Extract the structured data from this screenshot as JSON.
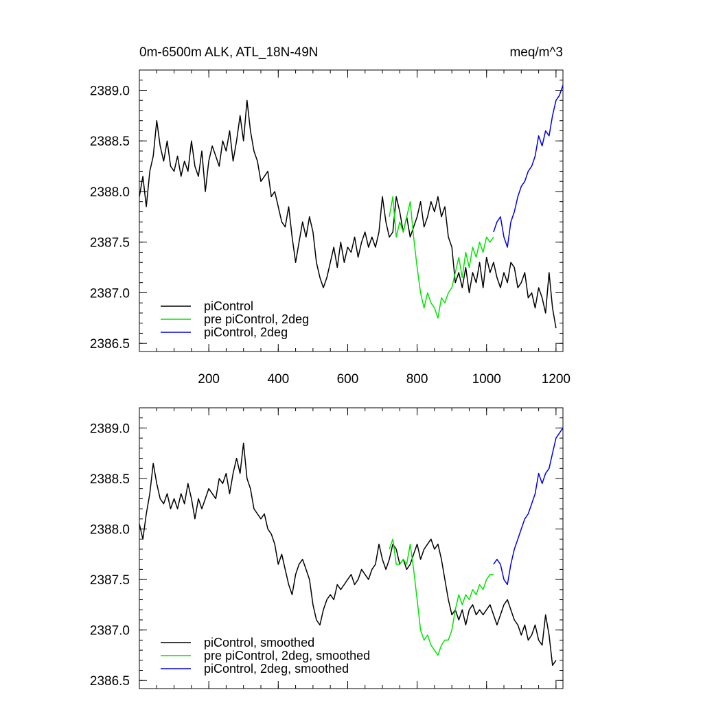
{
  "chart_data": [
    {
      "type": "line",
      "title": "",
      "header_left": "0m-6500m ALK, ATL_18N-49N",
      "header_right": "meq/m^3",
      "xlabel": "",
      "ylabel": "",
      "xlim": [
        0,
        1220
      ],
      "ylim": [
        2386.42,
        2389.2
      ],
      "x_ticks": [
        200,
        400,
        600,
        800,
        1000,
        1200
      ],
      "x_tick_labels": [
        "200",
        "400",
        "600",
        "800",
        "1000",
        "1200"
      ],
      "y_ticks": [
        2386.5,
        2387.0,
        2387.5,
        2388.0,
        2388.5,
        2389.0
      ],
      "y_tick_labels": [
        "2386.5",
        "2387.0",
        "2387.5",
        "2388.0",
        "2388.5",
        "2389.0"
      ],
      "grid": false,
      "legend_position": "bottom-left",
      "series": [
        {
          "name": "piControl",
          "color": "#000000",
          "x": [
            0,
            10,
            20,
            30,
            40,
            50,
            60,
            70,
            80,
            90,
            100,
            110,
            120,
            130,
            140,
            150,
            160,
            170,
            180,
            190,
            200,
            210,
            220,
            230,
            240,
            250,
            260,
            270,
            280,
            290,
            300,
            310,
            320,
            330,
            340,
            350,
            360,
            370,
            380,
            390,
            400,
            410,
            420,
            430,
            440,
            450,
            460,
            470,
            480,
            490,
            500,
            510,
            520,
            530,
            540,
            550,
            560,
            570,
            580,
            590,
            600,
            610,
            620,
            630,
            640,
            650,
            660,
            670,
            680,
            690,
            700,
            710,
            720,
            730,
            740,
            750,
            760,
            770,
            780,
            790,
            800,
            810,
            820,
            830,
            840,
            850,
            860,
            870,
            880,
            890,
            900,
            910,
            920,
            930,
            940,
            950,
            960,
            970,
            980,
            990,
            1000,
            1010,
            1020,
            1030,
            1040,
            1050,
            1060,
            1070,
            1080,
            1090,
            1100,
            1110,
            1120,
            1130,
            1140,
            1150,
            1160,
            1170,
            1180,
            1190,
            1200
          ],
          "values": [
            2387.95,
            2388.15,
            2387.85,
            2388.2,
            2388.35,
            2388.7,
            2388.45,
            2388.3,
            2388.5,
            2388.25,
            2388.2,
            2388.35,
            2388.15,
            2388.3,
            2388.2,
            2388.5,
            2388.25,
            2388.15,
            2388.4,
            2388.0,
            2388.3,
            2388.45,
            2388.35,
            2388.25,
            2388.5,
            2388.4,
            2388.6,
            2388.3,
            2388.5,
            2388.75,
            2388.5,
            2388.9,
            2388.6,
            2388.4,
            2388.3,
            2388.1,
            2388.15,
            2388.2,
            2387.95,
            2388.0,
            2387.85,
            2387.7,
            2387.65,
            2387.85,
            2387.55,
            2387.3,
            2387.5,
            2387.7,
            2387.55,
            2387.75,
            2387.6,
            2387.3,
            2387.15,
            2387.05,
            2387.15,
            2387.3,
            2387.45,
            2387.25,
            2387.5,
            2387.3,
            2387.45,
            2387.4,
            2387.55,
            2387.35,
            2387.5,
            2387.6,
            2387.45,
            2387.55,
            2387.45,
            2387.6,
            2387.95,
            2387.7,
            2387.55,
            2387.6,
            2387.95,
            2387.8,
            2387.6,
            2387.75,
            2387.55,
            2387.65,
            2387.75,
            2387.9,
            2387.65,
            2387.75,
            2387.9,
            2387.8,
            2387.95,
            2387.75,
            2387.85,
            2387.55,
            2387.45,
            2387.1,
            2387.2,
            2387.05,
            2387.25,
            2387.0,
            2387.2,
            2387.1,
            2387.3,
            2387.05,
            2387.35,
            2387.2,
            2387.3,
            2387.15,
            2387.05,
            2387.2,
            2387.1,
            2387.3,
            2387.25,
            2387.05,
            2387.1,
            2387.2,
            2386.95,
            2387.0,
            2386.85,
            2387.05,
            2386.95,
            2386.8,
            2387.2,
            2386.85,
            2386.65
          ]
        },
        {
          "name": "pre piControl, 2deg",
          "color": "#00e400",
          "x": [
            720,
            730,
            740,
            750,
            760,
            770,
            780,
            790,
            800,
            810,
            820,
            830,
            840,
            850,
            860,
            870,
            880,
            890,
            900,
            910,
            920,
            930,
            940,
            950,
            960,
            970,
            980,
            990,
            1000,
            1010,
            1020
          ],
          "values": [
            2387.75,
            2387.95,
            2387.55,
            2387.7,
            2387.6,
            2387.75,
            2387.9,
            2387.55,
            2387.25,
            2387.0,
            2386.85,
            2387.0,
            2386.9,
            2386.85,
            2386.75,
            2386.95,
            2386.9,
            2387.0,
            2387.05,
            2387.2,
            2387.35,
            2387.15,
            2387.4,
            2387.25,
            2387.45,
            2387.35,
            2387.5,
            2387.4,
            2387.55,
            2387.5,
            2387.55
          ]
        },
        {
          "name": "piControl, 2deg",
          "color": "#0000e4",
          "x": [
            1020,
            1030,
            1040,
            1050,
            1060,
            1070,
            1080,
            1090,
            1100,
            1110,
            1120,
            1130,
            1140,
            1150,
            1160,
            1170,
            1180,
            1190,
            1200,
            1210,
            1220
          ],
          "values": [
            2387.6,
            2387.7,
            2387.75,
            2387.55,
            2387.45,
            2387.7,
            2387.8,
            2387.95,
            2388.05,
            2388.1,
            2388.2,
            2388.25,
            2388.35,
            2388.55,
            2388.45,
            2388.6,
            2388.55,
            2388.75,
            2388.9,
            2388.95,
            2389.05
          ]
        }
      ]
    },
    {
      "type": "line",
      "title": "",
      "xlabel": "",
      "ylabel": "",
      "xlim": [
        0,
        1220
      ],
      "ylim": [
        2386.42,
        2389.2
      ],
      "x_ticks": [
        200,
        400,
        600,
        800,
        1000,
        1200
      ],
      "y_ticks": [
        2386.5,
        2387.0,
        2387.5,
        2388.0,
        2388.5,
        2389.0
      ],
      "y_tick_labels": [
        "2386.5",
        "2387.0",
        "2387.5",
        "2388.0",
        "2388.5",
        "2389.0"
      ],
      "grid": false,
      "legend_position": "bottom-left",
      "series": [
        {
          "name": "piControl, smoothed",
          "color": "#000000",
          "x": [
            0,
            10,
            20,
            30,
            40,
            50,
            60,
            70,
            80,
            90,
            100,
            110,
            120,
            130,
            140,
            150,
            160,
            170,
            180,
            190,
            200,
            210,
            220,
            230,
            240,
            250,
            260,
            270,
            280,
            290,
            300,
            310,
            320,
            330,
            340,
            350,
            360,
            370,
            380,
            390,
            400,
            410,
            420,
            430,
            440,
            450,
            460,
            470,
            480,
            490,
            500,
            510,
            520,
            530,
            540,
            550,
            560,
            570,
            580,
            590,
            600,
            610,
            620,
            630,
            640,
            650,
            660,
            670,
            680,
            690,
            700,
            710,
            720,
            730,
            740,
            750,
            760,
            770,
            780,
            790,
            800,
            810,
            820,
            830,
            840,
            850,
            860,
            870,
            880,
            890,
            900,
            910,
            920,
            930,
            940,
            950,
            960,
            970,
            980,
            990,
            1000,
            1010,
            1020,
            1030,
            1040,
            1050,
            1060,
            1070,
            1080,
            1090,
            1100,
            1110,
            1120,
            1130,
            1140,
            1150,
            1160,
            1170,
            1180,
            1190,
            1200
          ],
          "values": [
            2388.05,
            2387.9,
            2388.15,
            2388.35,
            2388.65,
            2388.45,
            2388.3,
            2388.25,
            2388.35,
            2388.2,
            2388.3,
            2388.2,
            2388.35,
            2388.25,
            2388.45,
            2388.3,
            2388.1,
            2388.3,
            2388.2,
            2388.3,
            2388.4,
            2388.35,
            2388.3,
            2388.5,
            2388.45,
            2388.55,
            2388.35,
            2388.55,
            2388.7,
            2388.55,
            2388.85,
            2388.5,
            2388.4,
            2388.2,
            2388.15,
            2388.1,
            2388.15,
            2388.0,
            2387.95,
            2387.85,
            2387.65,
            2387.75,
            2387.6,
            2387.45,
            2387.35,
            2387.55,
            2387.65,
            2387.7,
            2387.6,
            2387.5,
            2387.25,
            2387.1,
            2387.05,
            2387.2,
            2387.3,
            2387.35,
            2387.3,
            2387.45,
            2387.4,
            2387.45,
            2387.5,
            2387.55,
            2387.45,
            2387.5,
            2387.6,
            2387.55,
            2387.5,
            2387.6,
            2387.65,
            2387.85,
            2387.7,
            2387.6,
            2387.7,
            2387.85,
            2387.8,
            2387.65,
            2387.7,
            2387.6,
            2387.65,
            2387.75,
            2387.85,
            2387.7,
            2387.8,
            2387.85,
            2387.9,
            2387.8,
            2387.85,
            2387.7,
            2387.5,
            2387.3,
            2387.15,
            2387.2,
            2387.1,
            2387.2,
            2387.05,
            2387.2,
            2387.25,
            2387.15,
            2387.2,
            2387.15,
            2387.2,
            2387.25,
            2387.15,
            2387.05,
            2387.15,
            2387.25,
            2387.3,
            2387.2,
            2387.1,
            2387.05,
            2386.95,
            2387.05,
            2386.9,
            2386.95,
            2387.05,
            2386.9,
            2386.85,
            2387.15,
            2386.95,
            2386.65,
            2386.7
          ]
        },
        {
          "name": "pre piControl, 2deg, smoothed",
          "color": "#00e400",
          "x": [
            720,
            730,
            740,
            750,
            760,
            770,
            780,
            790,
            800,
            810,
            820,
            830,
            840,
            850,
            860,
            870,
            880,
            890,
            900,
            910,
            920,
            930,
            940,
            950,
            960,
            970,
            980,
            990,
            1000,
            1010,
            1020
          ],
          "values": [
            2387.8,
            2387.9,
            2387.65,
            2387.65,
            2387.7,
            2387.65,
            2387.85,
            2387.6,
            2387.3,
            2387.0,
            2386.9,
            2386.95,
            2386.85,
            2386.8,
            2386.75,
            2386.85,
            2386.9,
            2386.9,
            2387.0,
            2387.2,
            2387.35,
            2387.25,
            2387.35,
            2387.3,
            2387.4,
            2387.35,
            2387.45,
            2387.4,
            2387.5,
            2387.55,
            2387.55
          ]
        },
        {
          "name": "piControl, 2deg, smoothed",
          "color": "#0000e4",
          "x": [
            1020,
            1030,
            1040,
            1050,
            1060,
            1070,
            1080,
            1090,
            1100,
            1110,
            1120,
            1130,
            1140,
            1150,
            1160,
            1170,
            1180,
            1190,
            1200,
            1210,
            1220
          ],
          "values": [
            2387.65,
            2387.7,
            2387.65,
            2387.5,
            2387.45,
            2387.65,
            2387.8,
            2387.9,
            2388.0,
            2388.1,
            2388.15,
            2388.25,
            2388.35,
            2388.55,
            2388.45,
            2388.55,
            2388.6,
            2388.75,
            2388.9,
            2388.95,
            2389.0
          ]
        }
      ]
    }
  ]
}
